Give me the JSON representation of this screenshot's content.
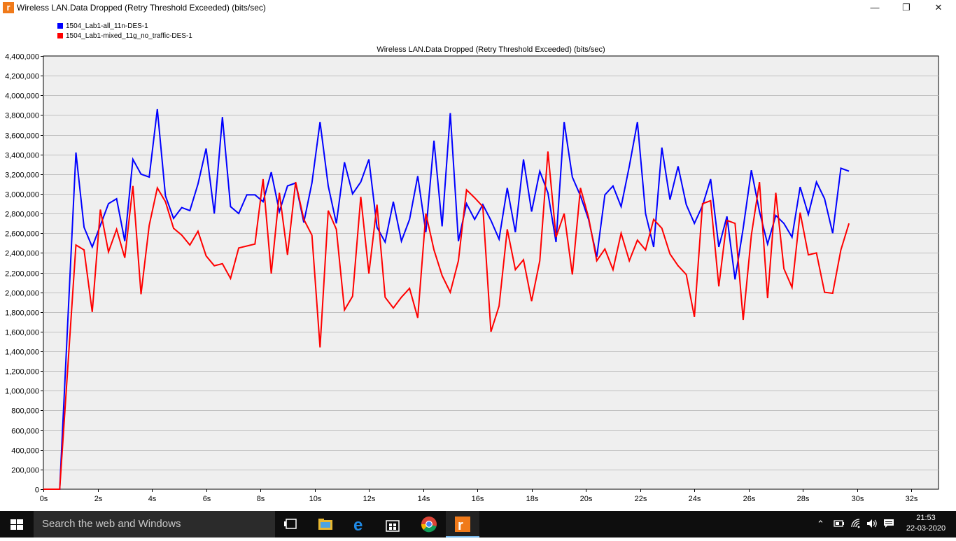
{
  "window": {
    "title": "Wireless LAN.Data Dropped (Retry Threshold Exceeded) (bits/sec)",
    "icon": "r"
  },
  "legend": [
    {
      "name": "1504_Lab1-all_11n-DES-1",
      "color": "#0000ff"
    },
    {
      "name": "1504_Lab1-mixed_11g_no_traffic-DES-1",
      "color": "#ff0000"
    }
  ],
  "chart_data": {
    "type": "line",
    "title": "Wireless LAN.Data Dropped (Retry Threshold Exceeded) (bits/sec)",
    "xlabel": "",
    "ylabel": "",
    "xlim": [
      0,
      33
    ],
    "ylim": [
      0,
      4400000
    ],
    "grid": true,
    "legend_position": "top-left",
    "xticks": [
      0,
      2,
      4,
      6,
      8,
      10,
      12,
      14,
      16,
      18,
      20,
      22,
      24,
      26,
      28,
      30,
      32
    ],
    "xtick_labels": [
      "0s",
      "2s",
      "4s",
      "6s",
      "8s",
      "10s",
      "12s",
      "14s",
      "16s",
      "18s",
      "20s",
      "22s",
      "24s",
      "26s",
      "28s",
      "30s",
      "32s"
    ],
    "yticks": [
      0,
      200000,
      400000,
      600000,
      800000,
      1000000,
      1200000,
      1400000,
      1600000,
      1800000,
      2000000,
      2200000,
      2400000,
      2600000,
      2800000,
      3000000,
      3200000,
      3400000,
      3600000,
      3800000,
      4000000,
      4200000,
      4400000
    ],
    "ytick_labels": [
      "0",
      "200,000",
      "400,000",
      "600,000",
      "800,000",
      "1,000,000",
      "1,200,000",
      "1,400,000",
      "1,600,000",
      "1,800,000",
      "2,000,000",
      "2,200,000",
      "2,400,000",
      "2,600,000",
      "2,800,000",
      "3,000,000",
      "3,200,000",
      "3,400,000",
      "3,600,000",
      "3,800,000",
      "4,000,000",
      "4,200,000",
      "4,400,000"
    ],
    "series": [
      {
        "name": "1504_Lab1-all_11n-DES-1",
        "color": "#0000ff",
        "points": [
          [
            0,
            0
          ],
          [
            0.6,
            0
          ],
          [
            1.2,
            3420000
          ],
          [
            1.5,
            2660000
          ],
          [
            1.8,
            2460000
          ],
          [
            2.4,
            2900000
          ],
          [
            2.7,
            2950000
          ],
          [
            3.0,
            2520000
          ],
          [
            3.3,
            3350000
          ],
          [
            3.6,
            3200000
          ],
          [
            3.9,
            3170000
          ],
          [
            4.2,
            3860000
          ],
          [
            4.5,
            2980000
          ],
          [
            4.8,
            2750000
          ],
          [
            5.1,
            2860000
          ],
          [
            5.4,
            2830000
          ],
          [
            5.7,
            3100000
          ],
          [
            6.0,
            3460000
          ],
          [
            6.3,
            2800000
          ],
          [
            6.6,
            3780000
          ],
          [
            6.9,
            2870000
          ],
          [
            7.2,
            2800000
          ],
          [
            7.5,
            2990000
          ],
          [
            7.8,
            2990000
          ],
          [
            8.1,
            2920000
          ],
          [
            8.4,
            3220000
          ],
          [
            8.7,
            2820000
          ],
          [
            9.0,
            3080000
          ],
          [
            9.3,
            3110000
          ],
          [
            9.6,
            2710000
          ],
          [
            9.9,
            3110000
          ],
          [
            10.2,
            3730000
          ],
          [
            10.5,
            3080000
          ],
          [
            10.8,
            2700000
          ],
          [
            11.1,
            3320000
          ],
          [
            11.4,
            3000000
          ],
          [
            11.7,
            3120000
          ],
          [
            12.0,
            3350000
          ],
          [
            12.3,
            2660000
          ],
          [
            12.6,
            2510000
          ],
          [
            12.9,
            2920000
          ],
          [
            13.2,
            2520000
          ],
          [
            13.5,
            2740000
          ],
          [
            13.8,
            3180000
          ],
          [
            14.1,
            2610000
          ],
          [
            14.4,
            3540000
          ],
          [
            14.7,
            2670000
          ],
          [
            15.0,
            3820000
          ],
          [
            15.3,
            2520000
          ],
          [
            15.6,
            2900000
          ],
          [
            15.9,
            2740000
          ],
          [
            16.2,
            2890000
          ],
          [
            16.5,
            2730000
          ],
          [
            16.8,
            2540000
          ],
          [
            17.1,
            3060000
          ],
          [
            17.4,
            2610000
          ],
          [
            17.7,
            3350000
          ],
          [
            18.0,
            2820000
          ],
          [
            18.3,
            3230000
          ],
          [
            18.6,
            3010000
          ],
          [
            18.9,
            2510000
          ],
          [
            19.2,
            3730000
          ],
          [
            19.5,
            3170000
          ],
          [
            19.8,
            2980000
          ],
          [
            20.1,
            2740000
          ],
          [
            20.4,
            2360000
          ],
          [
            20.7,
            2990000
          ],
          [
            21.0,
            3080000
          ],
          [
            21.3,
            2870000
          ],
          [
            21.6,
            3280000
          ],
          [
            21.9,
            3730000
          ],
          [
            22.2,
            2800000
          ],
          [
            22.5,
            2460000
          ],
          [
            22.8,
            3470000
          ],
          [
            23.1,
            2940000
          ],
          [
            23.4,
            3280000
          ],
          [
            23.7,
            2890000
          ],
          [
            24.0,
            2700000
          ],
          [
            24.3,
            2880000
          ],
          [
            24.6,
            3150000
          ],
          [
            24.9,
            2460000
          ],
          [
            25.2,
            2770000
          ],
          [
            25.5,
            2130000
          ],
          [
            25.8,
            2650000
          ],
          [
            26.1,
            3240000
          ],
          [
            26.4,
            2820000
          ],
          [
            26.7,
            2490000
          ],
          [
            27.0,
            2780000
          ],
          [
            27.3,
            2700000
          ],
          [
            27.6,
            2560000
          ],
          [
            27.9,
            3070000
          ],
          [
            28.2,
            2790000
          ],
          [
            28.5,
            3120000
          ],
          [
            28.8,
            2950000
          ],
          [
            29.1,
            2600000
          ],
          [
            29.4,
            3260000
          ],
          [
            29.7,
            3230000
          ]
        ]
      },
      {
        "name": "1504_Lab1-mixed_11g_no_traffic-DES-1",
        "color": "#ff0000",
        "points": [
          [
            0,
            0
          ],
          [
            0.6,
            0
          ],
          [
            1.2,
            2480000
          ],
          [
            1.5,
            2430000
          ],
          [
            1.8,
            1800000
          ],
          [
            2.1,
            2840000
          ],
          [
            2.4,
            2410000
          ],
          [
            2.7,
            2640000
          ],
          [
            3.0,
            2350000
          ],
          [
            3.3,
            3080000
          ],
          [
            3.6,
            1980000
          ],
          [
            3.9,
            2680000
          ],
          [
            4.2,
            3060000
          ],
          [
            4.5,
            2920000
          ],
          [
            4.8,
            2650000
          ],
          [
            5.1,
            2580000
          ],
          [
            5.4,
            2480000
          ],
          [
            5.7,
            2620000
          ],
          [
            6.0,
            2370000
          ],
          [
            6.3,
            2270000
          ],
          [
            6.6,
            2290000
          ],
          [
            6.9,
            2140000
          ],
          [
            7.2,
            2450000
          ],
          [
            7.5,
            2470000
          ],
          [
            7.8,
            2490000
          ],
          [
            8.1,
            3150000
          ],
          [
            8.4,
            2190000
          ],
          [
            8.7,
            3010000
          ],
          [
            9.0,
            2380000
          ],
          [
            9.3,
            3120000
          ],
          [
            9.6,
            2740000
          ],
          [
            9.9,
            2580000
          ],
          [
            10.2,
            1440000
          ],
          [
            10.5,
            2830000
          ],
          [
            10.8,
            2640000
          ],
          [
            11.1,
            1820000
          ],
          [
            11.4,
            1960000
          ],
          [
            11.7,
            2970000
          ],
          [
            12.0,
            2190000
          ],
          [
            12.3,
            2890000
          ],
          [
            12.6,
            1950000
          ],
          [
            12.9,
            1840000
          ],
          [
            13.2,
            1950000
          ],
          [
            13.5,
            2040000
          ],
          [
            13.8,
            1740000
          ],
          [
            14.1,
            2800000
          ],
          [
            14.4,
            2430000
          ],
          [
            14.7,
            2170000
          ],
          [
            15.0,
            2000000
          ],
          [
            15.3,
            2320000
          ],
          [
            15.6,
            3040000
          ],
          [
            15.9,
            2960000
          ],
          [
            16.2,
            2870000
          ],
          [
            16.5,
            1600000
          ],
          [
            16.8,
            1860000
          ],
          [
            17.1,
            2640000
          ],
          [
            17.4,
            2230000
          ],
          [
            17.7,
            2330000
          ],
          [
            18.0,
            1910000
          ],
          [
            18.3,
            2320000
          ],
          [
            18.6,
            3430000
          ],
          [
            18.9,
            2560000
          ],
          [
            19.2,
            2800000
          ],
          [
            19.5,
            2180000
          ],
          [
            19.8,
            3060000
          ],
          [
            20.1,
            2760000
          ],
          [
            20.4,
            2320000
          ],
          [
            20.7,
            2440000
          ],
          [
            21.0,
            2230000
          ],
          [
            21.3,
            2600000
          ],
          [
            21.6,
            2320000
          ],
          [
            21.9,
            2530000
          ],
          [
            22.2,
            2430000
          ],
          [
            22.5,
            2740000
          ],
          [
            22.8,
            2650000
          ],
          [
            23.1,
            2390000
          ],
          [
            23.4,
            2270000
          ],
          [
            23.7,
            2180000
          ],
          [
            24.0,
            1750000
          ],
          [
            24.3,
            2900000
          ],
          [
            24.6,
            2930000
          ],
          [
            24.9,
            2060000
          ],
          [
            25.2,
            2730000
          ],
          [
            25.5,
            2700000
          ],
          [
            25.8,
            1720000
          ],
          [
            26.1,
            2580000
          ],
          [
            26.4,
            3120000
          ],
          [
            26.7,
            1940000
          ],
          [
            27.0,
            3010000
          ],
          [
            27.3,
            2240000
          ],
          [
            27.6,
            2050000
          ],
          [
            27.9,
            2810000
          ],
          [
            28.2,
            2380000
          ],
          [
            28.5,
            2400000
          ],
          [
            28.8,
            2000000
          ],
          [
            29.1,
            1990000
          ],
          [
            29.4,
            2430000
          ],
          [
            29.7,
            2700000
          ]
        ]
      }
    ]
  },
  "taskbar": {
    "search_placeholder": "Search the web and Windows",
    "time": "21:53",
    "date": "22-03-2020"
  }
}
